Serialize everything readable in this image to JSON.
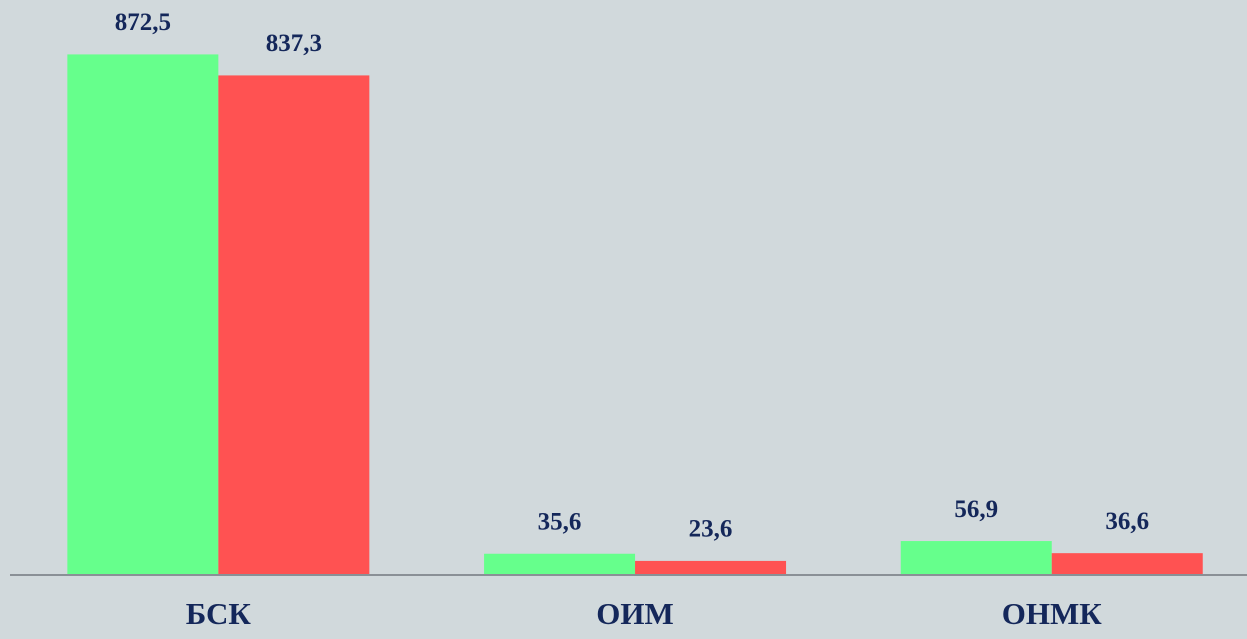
{
  "chart_data": {
    "type": "bar",
    "categories": [
      "БСК",
      "ОИМ",
      "ОНМК"
    ],
    "series": [
      {
        "color": "#66ff8c",
        "values": [
          872.5,
          35.6,
          56.9
        ],
        "value_labels": [
          "872,5",
          "35,6",
          "56,9"
        ]
      },
      {
        "color": "#ff5252",
        "values": [
          837.3,
          23.6,
          36.6
        ],
        "value_labels": [
          "837,3",
          "23,6",
          "36,6"
        ]
      }
    ],
    "ylim": [
      0,
      900
    ]
  }
}
